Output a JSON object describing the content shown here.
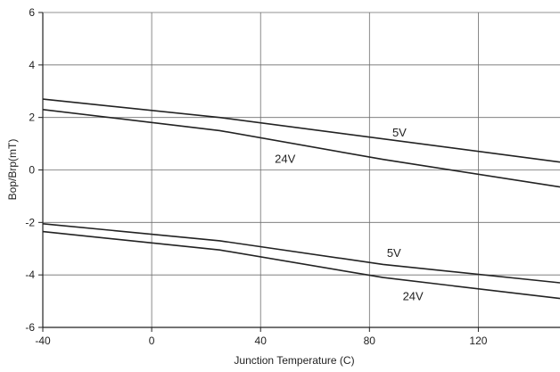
{
  "chart_data": {
    "type": "line",
    "xlabel": "Junction Temperature (C)",
    "ylabel": "Bop/Brp(mT)",
    "xlim": [
      -40,
      150
    ],
    "ylim": [
      -6,
      6
    ],
    "xticks": [
      -40,
      0,
      40,
      80,
      120
    ],
    "yticks": [
      -6,
      -4,
      -2,
      0,
      2,
      4,
      6
    ],
    "grid": true,
    "series": [
      {
        "name": "5V",
        "x": [
          -40,
          25,
          150
        ],
        "y": [
          2.7,
          2.0,
          0.3
        ]
      },
      {
        "name": "24V",
        "x": [
          -40,
          25,
          85,
          150
        ],
        "y": [
          2.3,
          1.5,
          0.4,
          -0.65
        ]
      },
      {
        "name": "5V",
        "x": [
          -40,
          25,
          85,
          150
        ],
        "y": [
          -2.05,
          -2.7,
          -3.6,
          -4.3
        ]
      },
      {
        "name": "24V",
        "x": [
          -40,
          25,
          85,
          150
        ],
        "y": [
          -2.35,
          -3.05,
          -4.1,
          -4.9
        ]
      }
    ],
    "annotations": [
      {
        "text": "5V",
        "x": 91,
        "y": 1.45
      },
      {
        "text": "24V",
        "x": 49,
        "y": 0.45
      },
      {
        "text": "5V",
        "x": 89,
        "y": -3.15
      },
      {
        "text": "24V",
        "x": 96,
        "y": -4.8
      }
    ],
    "colors": {
      "line": "#222222",
      "grid": "#6e6e6e",
      "axis": "#222222"
    }
  }
}
